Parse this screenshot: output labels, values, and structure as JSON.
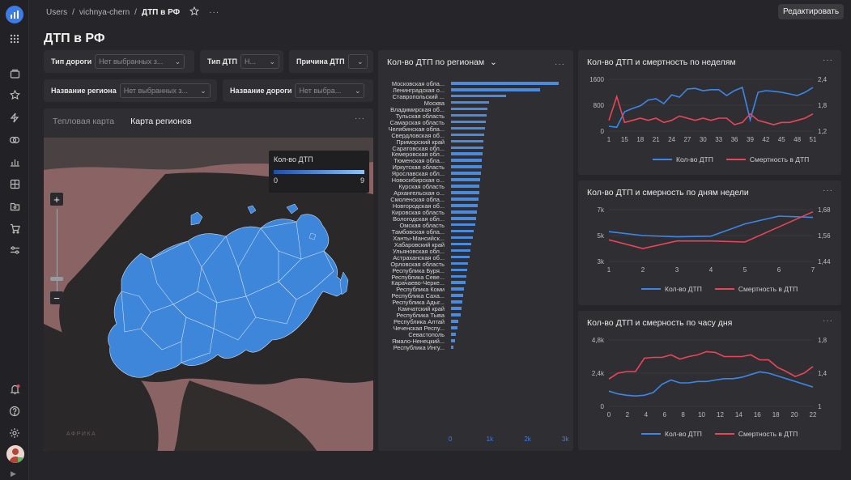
{
  "breadcrumb": {
    "workspace": "Users",
    "folder": "vichnya-chern",
    "current": "ДТП в РФ"
  },
  "header": {
    "edit_label": "Редактировать",
    "more_icon": "ellipsis-icon",
    "star_icon": "star-icon"
  },
  "page": {
    "title": "ДТП в РФ"
  },
  "filters": {
    "road_type": {
      "label": "Тип дороги",
      "value": "Нет выбранных з..."
    },
    "dtp_type": {
      "label": "Тип ДТП",
      "value": "Н..."
    },
    "cause": {
      "label": "Причина ДТП",
      "value": ""
    },
    "region": {
      "label": "Название региона",
      "value": "Нет выбранных з..."
    },
    "road_name": {
      "label": "Название дороги",
      "value": "Нет выбра..."
    }
  },
  "map_panel": {
    "tabs": [
      "Тепловая карта",
      "Карта регионов"
    ],
    "active_tab": "Карта регионов",
    "legend": {
      "title": "Кол-во ДТП",
      "min": "0",
      "max": "9"
    },
    "zoom_in": "+",
    "zoom_out": "−",
    "basemap_label": "АФРИКА",
    "colors": {
      "fill": "#3d86d9",
      "ocean": "#8a6464",
      "land": "#2b2b2b",
      "legend_low": "#1f4ea8",
      "legend_high": "#8fc3f5"
    }
  },
  "bar_panel": {
    "title": "Кол-во ДТП по регионам",
    "chart_data": {
      "type": "bar",
      "orientation": "horizontal",
      "color": "#4a8be0",
      "xticks": [
        "0",
        "1k",
        "2k",
        "3k"
      ],
      "xlim": [
        0,
        3000
      ],
      "categories": [
        "Московская обла...",
        "Ленинградская о...",
        "Ставропольский ...",
        "Москва",
        "Владимирская об...",
        "Тульская область",
        "Самарская область",
        "Челябинская обла...",
        "Свердловская об...",
        "Приморский край",
        "Саратовская обл...",
        "Кемеровская обл...",
        "Тюменская обла...",
        "Иркутская область",
        "Ярославская обл...",
        "Новосибирская о...",
        "Курская область",
        "Архангельская о...",
        "Смоленская обла...",
        "Новгородская об...",
        "Кировская область",
        "Вологодская обл...",
        "Омская область",
        "Тамбовская обла...",
        "Ханты-Мансийск...",
        "Хабаровский край",
        "Ульяновская обл...",
        "Астраханская об...",
        "Орловская область",
        "Республика Буря...",
        "Республика Севе...",
        "Карачаево-Черке...",
        "Республика Коми",
        "Республика Саха...",
        "Республика Адыг...",
        "Камчатский край",
        "Республика Тыва",
        "Республика Алтай",
        "Чеченская Респу...",
        "Севастополь",
        "Ямало-Ненецкий...",
        "Республика Ингу..."
      ],
      "values": [
        2850,
        2350,
        1450,
        1000,
        960,
        950,
        920,
        900,
        880,
        860,
        850,
        830,
        820,
        810,
        800,
        780,
        760,
        740,
        720,
        700,
        680,
        660,
        640,
        600,
        570,
        540,
        510,
        490,
        460,
        430,
        400,
        380,
        350,
        320,
        300,
        280,
        250,
        200,
        170,
        130,
        100,
        70
      ]
    }
  },
  "week_panel": {
    "title": "Кол-во ДТП и смертность по неделям",
    "chart_data": {
      "type": "line",
      "x": [
        1,
        3,
        5,
        7,
        9,
        11,
        13,
        15,
        17,
        19,
        21,
        23,
        25,
        27,
        29,
        31,
        33,
        35,
        37,
        39,
        41,
        43,
        45,
        47,
        49,
        51,
        53
      ],
      "xticks": [
        "1",
        "15",
        "18",
        "21",
        "24",
        "27",
        "30",
        "33",
        "36",
        "39",
        "42",
        "45",
        "48",
        "51"
      ],
      "y_left_ticks": [
        "0",
        "800",
        "1600"
      ],
      "y_right_ticks": [
        "1,2",
        "1,8",
        "2,4"
      ],
      "ylim_left": [
        0,
        1600
      ],
      "ylim_right": [
        1.2,
        2.4
      ],
      "series": [
        {
          "name": "Кол-во ДТП",
          "axis": "left",
          "color": "#3d86e8",
          "values": [
            150,
            120,
            600,
            700,
            780,
            960,
            1000,
            850,
            1120,
            1050,
            1300,
            1320,
            1250,
            1280,
            1280,
            1100,
            1250,
            1350,
            350,
            1200,
            1250,
            1230,
            1200,
            1150,
            1100,
            1200,
            1350
          ]
        },
        {
          "name": "Смертность в ДТП",
          "axis": "right",
          "color": "#e8455a",
          "values": [
            1.45,
            2.0,
            1.4,
            1.45,
            1.5,
            1.45,
            1.5,
            1.4,
            1.45,
            1.55,
            1.5,
            1.45,
            1.5,
            1.45,
            1.5,
            1.5,
            1.35,
            1.4,
            1.6,
            1.45,
            1.4,
            1.35,
            1.4,
            1.4,
            1.45,
            1.5,
            1.6
          ]
        }
      ],
      "legend": [
        "Кол-во ДТП",
        "Смертность в ДТП"
      ]
    }
  },
  "weekday_panel": {
    "title": "Кол-во ДТП и смерность по дням недели",
    "chart_data": {
      "type": "line",
      "x": [
        1,
        2,
        3,
        4,
        5,
        6,
        7
      ],
      "xticks": [
        "1",
        "2",
        "3",
        "4",
        "5",
        "6",
        "7"
      ],
      "y_left_ticks": [
        "3k",
        "5k",
        "7k"
      ],
      "y_right_ticks": [
        "1,44",
        "1,56",
        "1,68"
      ],
      "ylim_left": [
        3000,
        7000
      ],
      "ylim_right": [
        1.44,
        1.68
      ],
      "series": [
        {
          "name": "Кол-во ДТП",
          "axis": "left",
          "color": "#3d86e8",
          "values": [
            5300,
            5000,
            4900,
            4950,
            5900,
            6500,
            6400
          ]
        },
        {
          "name": "Смертность в ДТП",
          "axis": "right",
          "color": "#e8455a",
          "values": [
            1.54,
            1.5,
            1.535,
            1.535,
            1.53,
            1.6,
            1.67
          ]
        }
      ],
      "legend": [
        "Кол-во ДТП",
        "Смертность в ДТП"
      ]
    }
  },
  "hour_panel": {
    "title": "Кол-во ДТП и смерность по часу дня",
    "chart_data": {
      "type": "line",
      "x": [
        0,
        1,
        2,
        3,
        4,
        5,
        6,
        7,
        8,
        9,
        10,
        11,
        12,
        13,
        14,
        15,
        16,
        17,
        18,
        19,
        20,
        21,
        22,
        23
      ],
      "xticks": [
        "0",
        "2",
        "4",
        "6",
        "8",
        "10",
        "12",
        "14",
        "16",
        "18",
        "20",
        "22"
      ],
      "y_left_ticks": [
        "0",
        "2,4k",
        "4,8k"
      ],
      "y_right_ticks": [
        "1",
        "1,4",
        "1,8"
      ],
      "ylim_left": [
        0,
        4800
      ],
      "ylim_right": [
        1.0,
        1.8
      ],
      "series": [
        {
          "name": "Кол-во ДТП",
          "axis": "left",
          "color": "#3d86e8",
          "values": [
            1100,
            900,
            800,
            750,
            800,
            1000,
            1600,
            1900,
            1700,
            1700,
            1800,
            1800,
            1900,
            2000,
            2000,
            2100,
            2300,
            2500,
            2400,
            2200,
            2000,
            1800,
            1600,
            1400
          ]
        },
        {
          "name": "Смертность в ДТП",
          "axis": "right",
          "color": "#e8455a",
          "values": [
            1.33,
            1.4,
            1.42,
            1.42,
            1.58,
            1.59,
            1.59,
            1.62,
            1.57,
            1.6,
            1.62,
            1.66,
            1.65,
            1.6,
            1.6,
            1.6,
            1.62,
            1.56,
            1.56,
            1.47,
            1.42,
            1.36,
            1.4,
            1.48
          ]
        }
      ],
      "legend": [
        "Кол-во ДТП",
        "Смертность в ДТП"
      ]
    }
  },
  "sidebar": {
    "items": [
      "chart-bars-logo",
      "grid-icon",
      "collections-icon",
      "star-icon",
      "bolt-icon",
      "connections-icon",
      "charts-icon",
      "datasets-icon",
      "folder-icon",
      "cart-icon",
      "settings-sliders-icon"
    ],
    "bottom": [
      "notifications-icon",
      "help-icon",
      "settings-icon"
    ]
  }
}
